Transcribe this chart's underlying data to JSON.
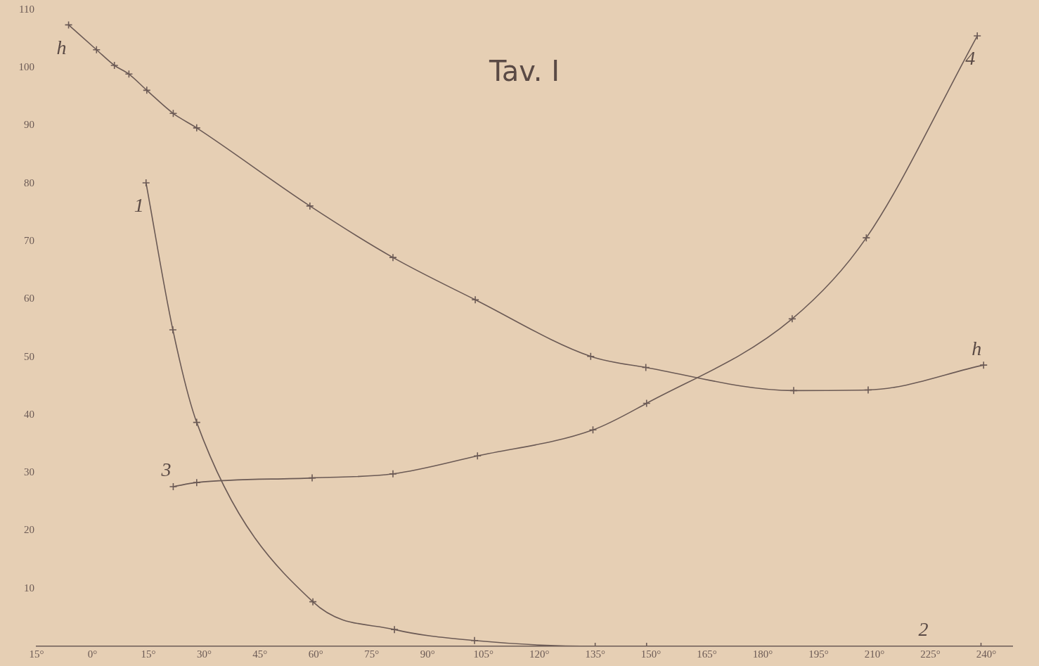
{
  "chart_data": {
    "type": "line",
    "title": "Tav. I",
    "marker": "cross",
    "grid": false,
    "xlim": [
      -15,
      247
    ],
    "xticks": [
      {
        "value": -15,
        "label": "15°"
      },
      {
        "value": 0,
        "label": "0°"
      },
      {
        "value": 15,
        "label": "15°"
      },
      {
        "value": 30,
        "label": "30°"
      },
      {
        "value": 45,
        "label": "45°"
      },
      {
        "value": 60,
        "label": "60°"
      },
      {
        "value": 75,
        "label": "75°"
      },
      {
        "value": 90,
        "label": "90°"
      },
      {
        "value": 105,
        "label": "105°"
      },
      {
        "value": 120,
        "label": "120°"
      },
      {
        "value": 135,
        "label": "135°"
      },
      {
        "value": 150,
        "label": "150°"
      },
      {
        "value": 165,
        "label": "165°"
      },
      {
        "value": 180,
        "label": "180°"
      },
      {
        "value": 195,
        "label": "195°"
      },
      {
        "value": 210,
        "label": "210°"
      },
      {
        "value": 225,
        "label": "225°"
      },
      {
        "value": 240,
        "label": "240°"
      }
    ],
    "ylim": [
      0,
      110
    ],
    "yticks": [
      10,
      20,
      30,
      40,
      50,
      60,
      70,
      80,
      90,
      100,
      110
    ],
    "series": [
      {
        "color": "#6b5a55",
        "x": [
          -6.4,
          1.1,
          5.9,
          9.8,
          14.6,
          21.7,
          28,
          58.4,
          80.7,
          102.8,
          133.8,
          148.6,
          188.3,
          208.3,
          239.3
        ],
        "values": [
          107.4,
          103.1,
          100.4,
          98.9,
          96.1,
          92.1,
          89.6,
          76.1,
          67.2,
          59.9,
          50.1,
          48.2,
          44.2,
          44.3,
          48.6
        ]
      },
      {
        "color": "#6b5a55",
        "x": [
          14.4,
          21.6,
          28,
          59.2,
          81.1,
          102.6,
          135,
          148.8,
          238.6
        ],
        "values": [
          80.1,
          54.7,
          38.7,
          7.7,
          2.9,
          1.0,
          0,
          0,
          0
        ]
      },
      {
        "color": "#6b5a55",
        "x": [
          21.7,
          28,
          59,
          80.7,
          103.4,
          134.4,
          148.8,
          187.9,
          207.8,
          237.6
        ],
        "values": [
          27.6,
          28.3,
          29.1,
          29.8,
          32.9,
          37.4,
          42,
          56.6,
          70.6,
          105.5
        ]
      }
    ],
    "annotations": [
      {
        "text": "h",
        "x": -6.4,
        "y": 107.4
      },
      {
        "text": "h",
        "x": 239.3,
        "y": 48.6
      },
      {
        "text": "1",
        "x": 14.4,
        "y": 80.1
      },
      {
        "text": "2",
        "x": 225,
        "y": 0
      },
      {
        "text": "3",
        "x": 21.7,
        "y": 27.6
      },
      {
        "text": "4",
        "x": 237.6,
        "y": 105.5
      }
    ]
  }
}
